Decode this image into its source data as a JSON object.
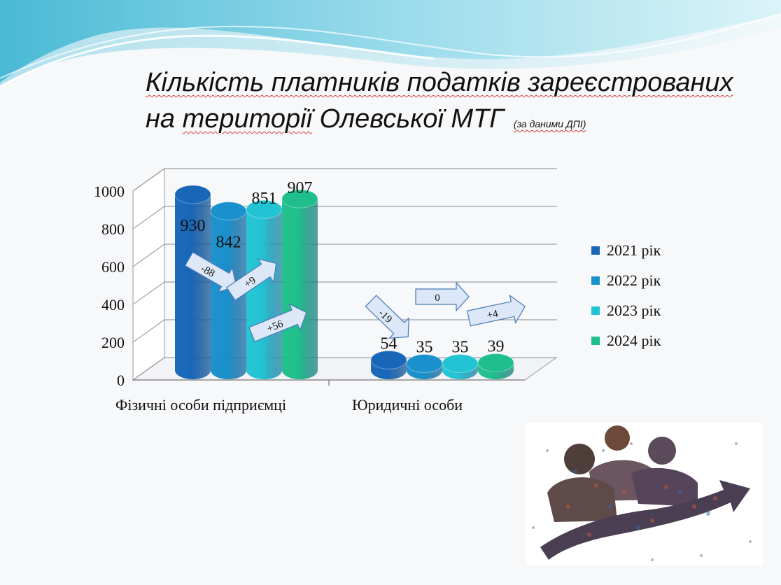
{
  "title": {
    "line1": "Кількість платників податків зареєстрованих",
    "line2_prefix": "на ",
    "line2_word": "території",
    "line2_mid": " Олевської ",
    "line2_end": "МТГ",
    "source": "(за даними ДПІ)"
  },
  "colors": {
    "s2021": "#1866b8",
    "s2022": "#1a90cc",
    "s2023": "#22c4d4",
    "s2024": "#1fbf8c",
    "arrow_fill": "#dce8f7",
    "arrow_stroke": "#4a78b8"
  },
  "chart_data": {
    "type": "bar",
    "categories": [
      "Фізичні особи підприємці",
      "Юридичні особи"
    ],
    "series": [
      {
        "name": "2021 рік",
        "values": [
          930,
          54
        ]
      },
      {
        "name": "2022 рік",
        "values": [
          842,
          35
        ]
      },
      {
        "name": "2023 рік",
        "values": [
          851,
          35
        ]
      },
      {
        "name": "2024 рік",
        "values": [
          907,
          39
        ]
      }
    ],
    "ylim": [
      0,
      1000
    ],
    "yticks": [
      "0",
      "200",
      "400",
      "600",
      "800",
      "1000"
    ],
    "legend_position": "right",
    "grid": true,
    "annotations": [
      {
        "text": "-88",
        "category": 0,
        "between": [
          0,
          1
        ]
      },
      {
        "text": "+9",
        "category": 0,
        "between": [
          1,
          2
        ]
      },
      {
        "text": "+56",
        "category": 0,
        "between": [
          2,
          3
        ]
      },
      {
        "text": "-19",
        "category": 1,
        "between": [
          0,
          1
        ]
      },
      {
        "text": "0",
        "category": 1,
        "between": [
          1,
          2
        ]
      },
      {
        "text": "+4",
        "category": 1,
        "between": [
          2,
          3
        ]
      }
    ]
  }
}
